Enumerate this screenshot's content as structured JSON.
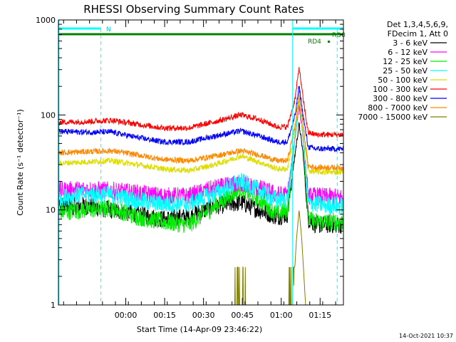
{
  "chart_data": {
    "type": "line",
    "title": "RHESSI Observing Summary Count Rates",
    "xlabel": "Start Time (14-Apr-09 23:46:22)",
    "ylabel": "Count Rate (s⁻¹ detector⁻¹)",
    "x_unit": "minutes after 23:46:22",
    "xlim": [
      -12.4,
      97.6
    ],
    "ylim": [
      1,
      1000
    ],
    "yscale": "log",
    "xticks": [
      {
        "label": "00:00",
        "x": 13.6
      },
      {
        "label": "00:15",
        "x": 28.6
      },
      {
        "label": "00:30",
        "x": 43.6
      },
      {
        "label": "00:45",
        "x": 58.6
      },
      {
        "label": "01:00",
        "x": 73.6
      },
      {
        "label": "01:15",
        "x": 88.6
      }
    ],
    "yticks": [
      {
        "label": "1",
        "y": 1
      },
      {
        "label": "10",
        "y": 10
      },
      {
        "label": "100",
        "y": 100
      },
      {
        "label": "1000",
        "y": 1000
      }
    ],
    "legend": {
      "header": [
        "Det 1,3,4,5,6,9,",
        "FDecim 1, Att 0"
      ],
      "position": "right"
    },
    "series": [
      {
        "name": "3 - 6 keV",
        "color": "#000000",
        "x": [
          -12.4,
          -2,
          8,
          18,
          28,
          38,
          48,
          58,
          65,
          72,
          76,
          79,
          80.5,
          82,
          84,
          87,
          97.6
        ],
        "y": [
          11,
          11,
          10,
          9,
          8,
          8.5,
          11,
          12,
          10,
          8.5,
          9,
          40,
          80,
          40,
          8,
          7,
          7
        ]
      },
      {
        "name": "6 - 12 keV",
        "color": "#ff00ff",
        "x": [
          -12.4,
          -2,
          8,
          18,
          28,
          38,
          48,
          58,
          65,
          72,
          76,
          79,
          80.5,
          82,
          84,
          87,
          97.6
        ],
        "y": [
          16,
          16.5,
          16,
          15,
          14,
          14,
          17,
          19,
          17,
          14.5,
          14.5,
          60,
          125,
          60,
          14,
          14,
          13.5
        ]
      },
      {
        "name": "12 - 25 keV",
        "color": "#00ee00",
        "x": [
          -12.4,
          -2,
          8,
          18,
          28,
          38,
          48,
          58,
          65,
          72,
          76,
          79,
          80.5,
          82,
          84,
          87,
          97.6
        ],
        "y": [
          9.5,
          10,
          10.5,
          8.5,
          7.5,
          7,
          11,
          17,
          13,
          9,
          10,
          60,
          150,
          60,
          8,
          7.5,
          7.5
        ]
      },
      {
        "name": "25 - 50 keV",
        "color": "#00ffff",
        "x": [
          -12.4,
          -2,
          8,
          18,
          28,
          38,
          48,
          58,
          65,
          72,
          76,
          79,
          80.5,
          82,
          84,
          87,
          97.6
        ],
        "y": [
          13.5,
          14.5,
          14.5,
          12.5,
          11.5,
          11.5,
          15,
          20,
          16,
          12.5,
          13,
          60,
          150,
          60,
          12,
          11.5,
          11
        ]
      },
      {
        "name": "50 - 100 keV",
        "color": "#dddd00",
        "x": [
          -12.4,
          -2,
          8,
          18,
          28,
          38,
          48,
          58,
          65,
          72,
          76,
          79,
          80.5,
          82,
          84,
          87,
          97.6
        ],
        "y": [
          31,
          32,
          33,
          30,
          27,
          26,
          30,
          37,
          32,
          27,
          27,
          70,
          140,
          70,
          26,
          25,
          25
        ]
      },
      {
        "name": "100 - 300 keV",
        "color": "#ff0000",
        "x": [
          -12.4,
          -2,
          8,
          18,
          28,
          38,
          48,
          58,
          65,
          72,
          76,
          79,
          80.5,
          82,
          84,
          87,
          97.6
        ],
        "y": [
          84,
          85,
          88,
          80,
          73,
          73,
          85,
          100,
          90,
          75,
          75,
          150,
          320,
          150,
          65,
          62,
          62
        ]
      },
      {
        "name": "300 - 800 keV",
        "color": "#0000ff",
        "x": [
          -12.4,
          -2,
          8,
          18,
          28,
          38,
          48,
          58,
          65,
          72,
          76,
          79,
          80.5,
          82,
          84,
          87,
          97.6
        ],
        "y": [
          67,
          66,
          66,
          58,
          52,
          52,
          60,
          68,
          60,
          52,
          52,
          100,
          200,
          100,
          46,
          44,
          44
        ]
      },
      {
        "name": "800 - 7000 keV",
        "color": "#ff8800",
        "x": [
          -12.4,
          -2,
          8,
          18,
          28,
          38,
          48,
          58,
          65,
          72,
          76,
          79,
          80.5,
          82,
          84,
          87,
          97.6
        ],
        "y": [
          40,
          41,
          42,
          38,
          34,
          33,
          37,
          42,
          38,
          33,
          33,
          80,
          160,
          80,
          29,
          28,
          28
        ]
      },
      {
        "name": "7000 - 15000 keV",
        "color": "#808000",
        "x": [
          -12.4,
          78,
          79.5,
          80.5,
          81.5,
          83,
          97.6
        ],
        "y": [
          1,
          1,
          5,
          10,
          5,
          1,
          1
        ]
      }
    ],
    "annotations": {
      "n_label": "N",
      "rd0_label": "RD0",
      "rd4_label": "RD4",
      "timestamp": "14-Oct-2021 10:37"
    }
  }
}
